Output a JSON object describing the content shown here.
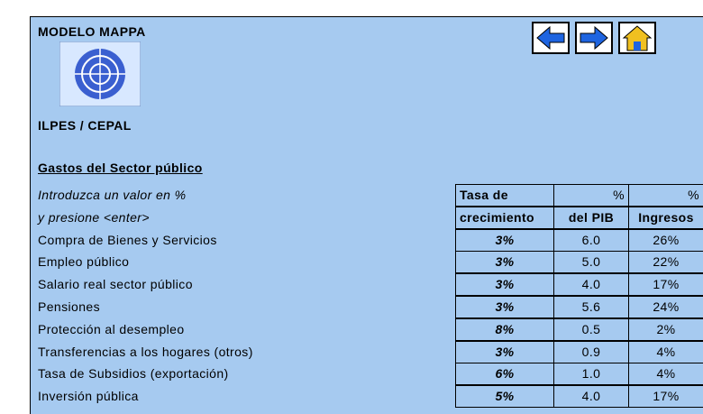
{
  "header": {
    "title": "MODELO MAPPA",
    "subtitle": "ILPES / CEPAL"
  },
  "section": {
    "title": "Gastos del Sector público",
    "instructions": [
      "Introduzca un valor en %",
      "y presione <enter>"
    ]
  },
  "table": {
    "columns": [
      [
        "Tasa de",
        "crecimiento"
      ],
      [
        "%",
        "del PIB"
      ],
      [
        "%",
        "Ingresos"
      ]
    ],
    "rows": [
      [
        "Compra de Bienes y Servicios",
        "3%",
        "6.0",
        "26%"
      ],
      [
        "Empleo público",
        "3%",
        "5.0",
        "22%"
      ],
      [
        "Salario real sector público",
        "3%",
        "4.0",
        "17%"
      ],
      [
        "Pensiones",
        "3%",
        "5.6",
        "24%"
      ],
      [
        "Protección al desempleo",
        "8%",
        "0.5",
        "2%"
      ],
      [
        "Transferencias a los hogares (otros)",
        "3%",
        "0.9",
        "4%"
      ],
      [
        "Tasa de Subsidios (exportación)",
        "6%",
        "1.0",
        "4%"
      ],
      [
        "Inversión pública",
        "5%",
        "4.0",
        "17%"
      ]
    ]
  }
}
